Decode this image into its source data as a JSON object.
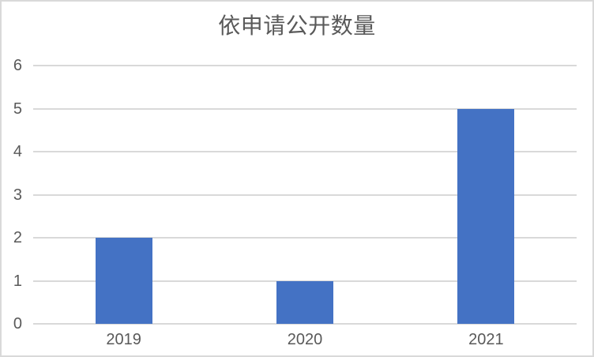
{
  "chart_data": {
    "type": "bar",
    "title": "依申请公开数量",
    "categories": [
      "2019",
      "2020",
      "2021"
    ],
    "values": [
      2,
      1,
      5
    ],
    "xlabel": "",
    "ylabel": "",
    "ylim": [
      0,
      6
    ],
    "yticks": [
      0,
      1,
      2,
      3,
      4,
      5,
      6
    ],
    "grid": true,
    "legend": false,
    "bar_color": "#4472C4",
    "gridline_color": "#D9D9D9",
    "text_color": "#595959",
    "frame_border_color": "#D9D9D9",
    "background_color": "#FFFFFF"
  }
}
